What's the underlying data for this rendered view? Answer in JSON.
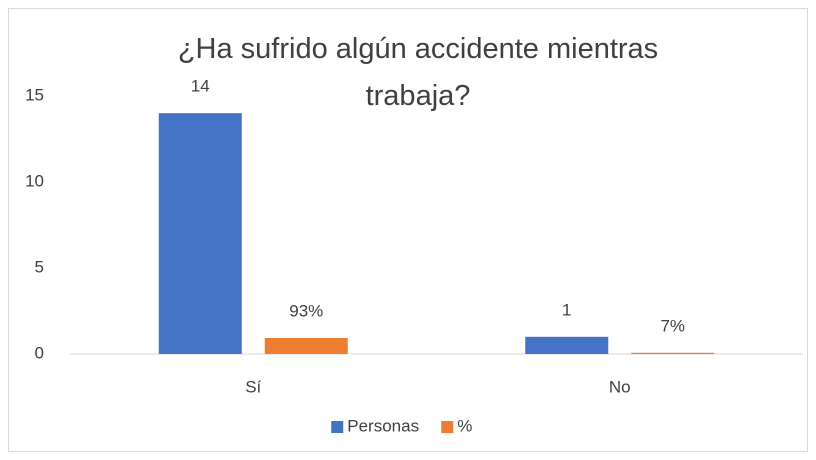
{
  "chart_data": {
    "type": "bar",
    "title": "¿Ha sufrido algún accidente mientras trabaja?",
    "categories": [
      "Sí",
      "No"
    ],
    "series": [
      {
        "name": "Personas",
        "color": "#4472c4",
        "values": [
          14,
          1
        ]
      },
      {
        "name": "%",
        "color": "#ed7d31",
        "values": [
          0.93,
          0.07
        ],
        "value_labels": [
          "93%",
          "7%"
        ]
      }
    ],
    "ylim": [
      0,
      15
    ],
    "yticks": [
      0,
      5,
      10,
      15
    ],
    "grid": false,
    "legend": "bottom"
  }
}
